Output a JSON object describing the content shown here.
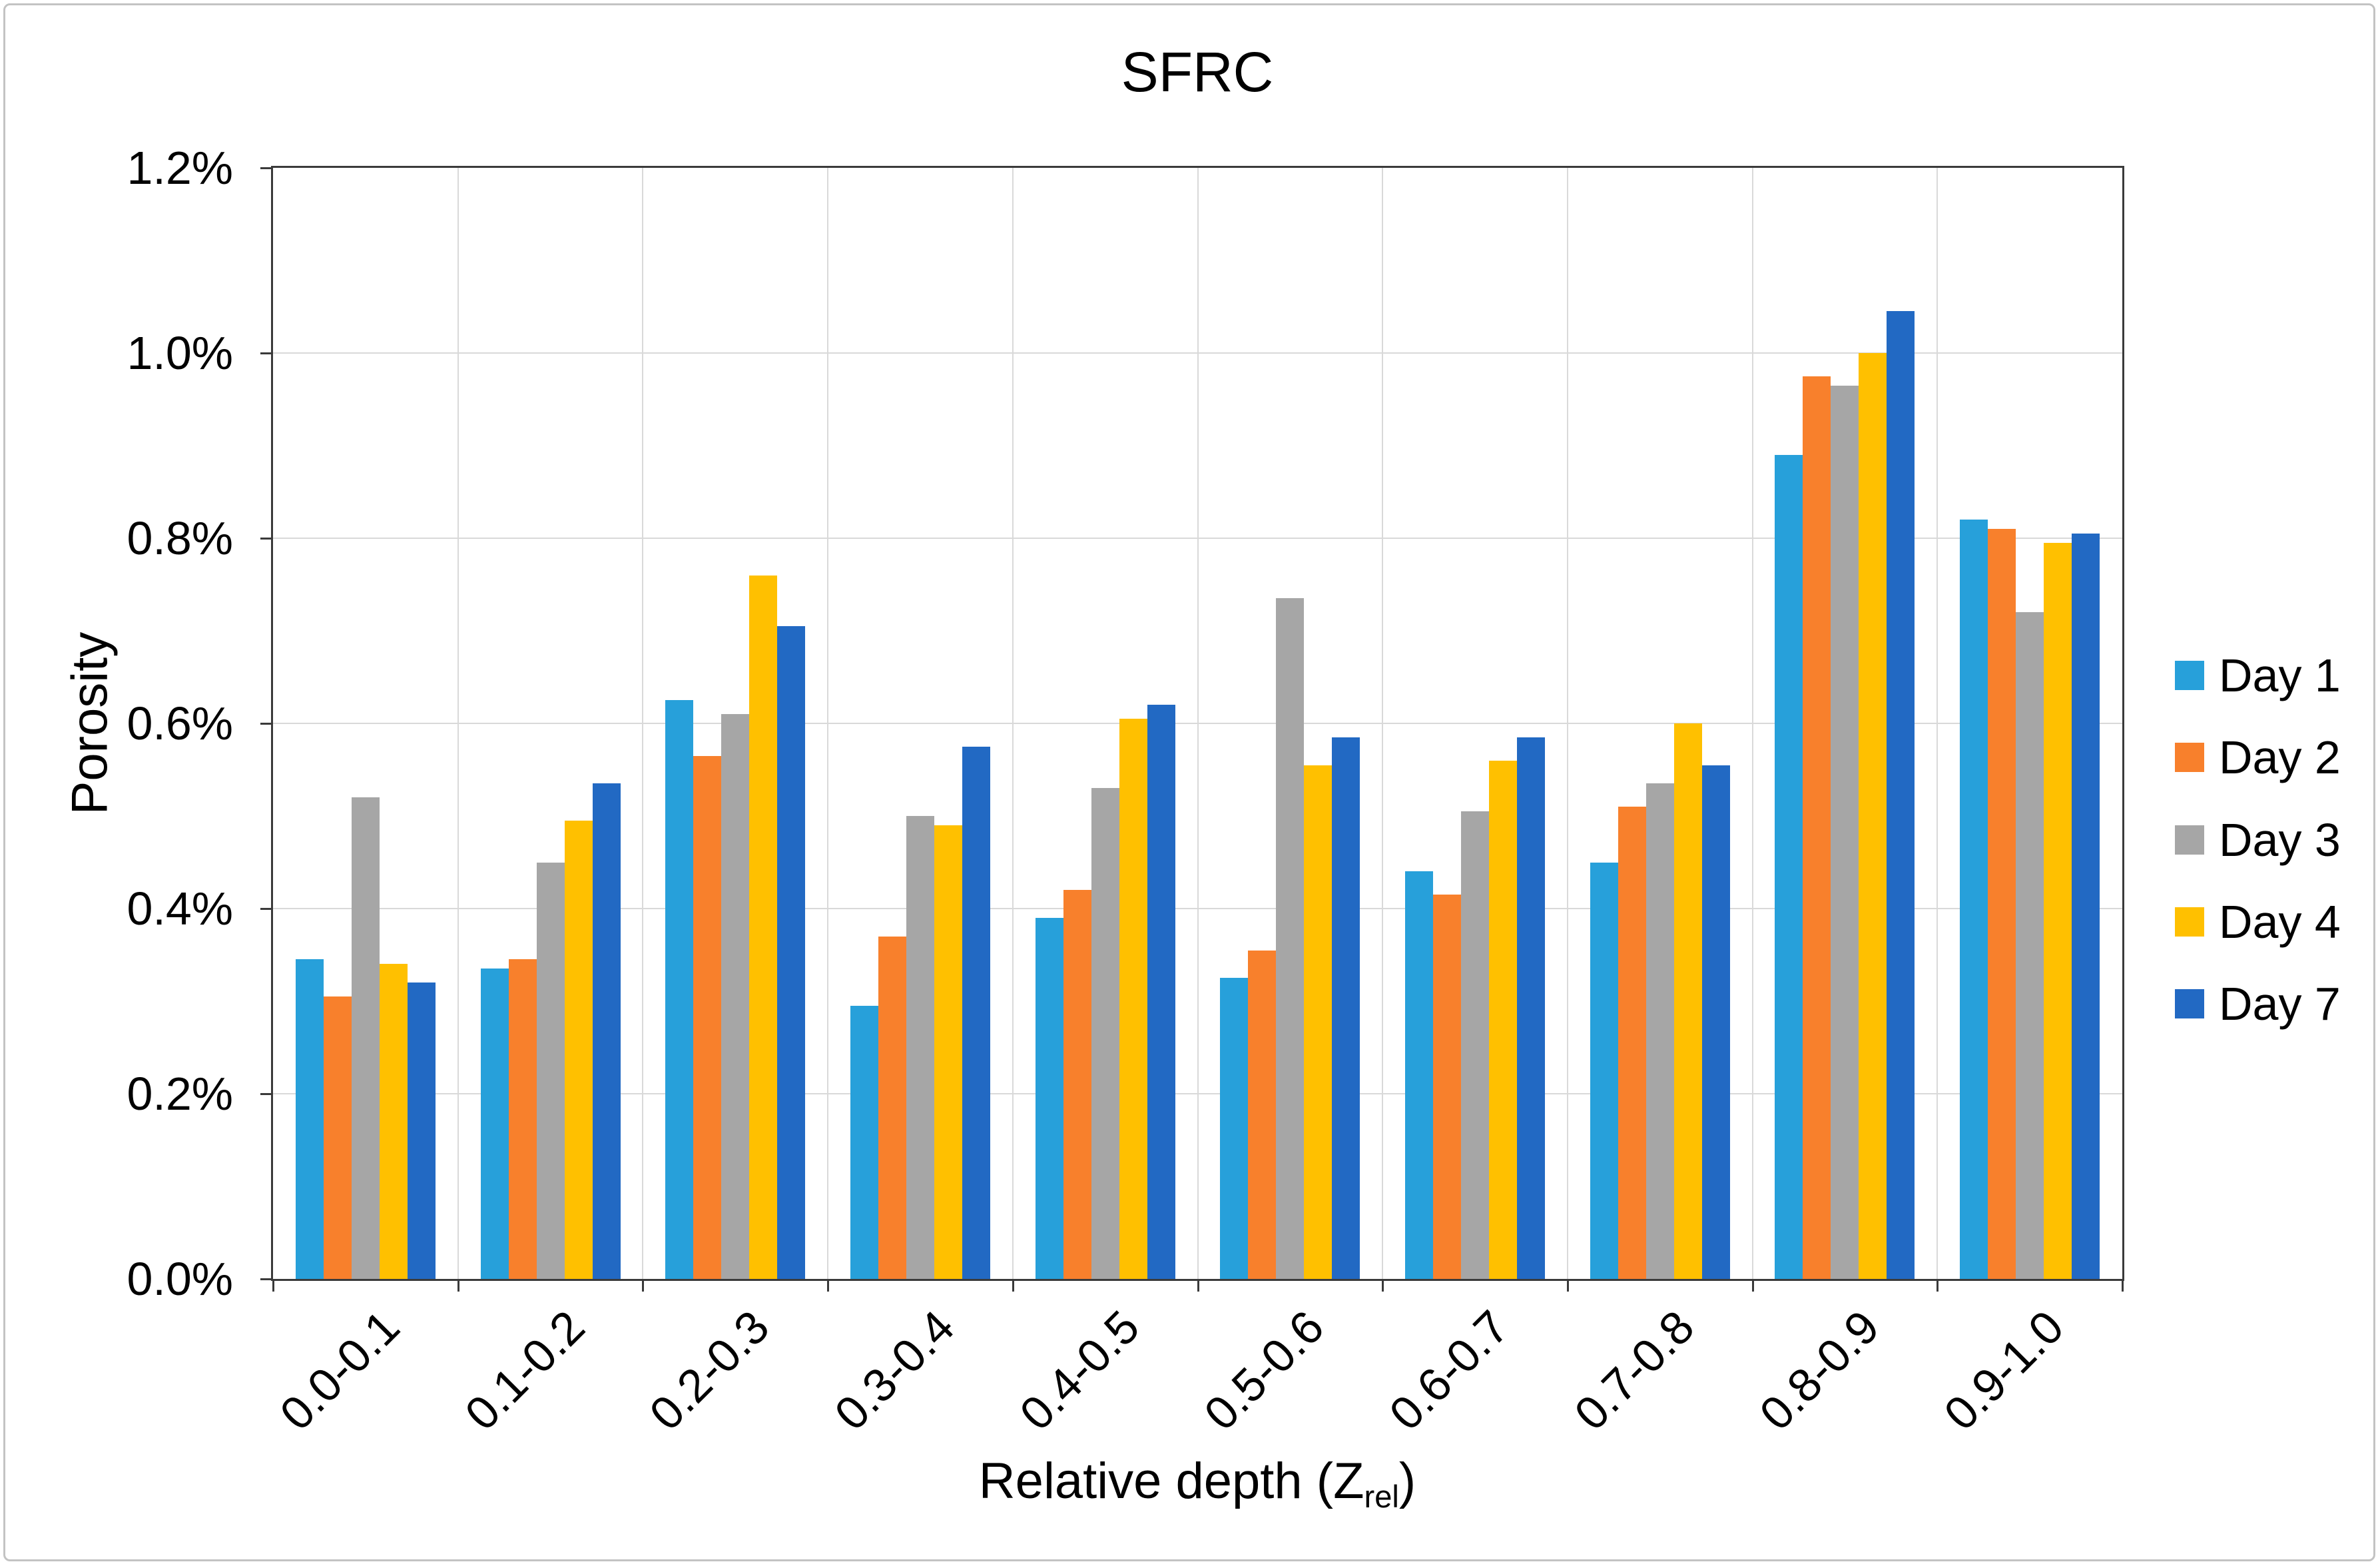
{
  "frame": {
    "background": "#ffffff",
    "border_color": "#c3c3c3"
  },
  "chart_data": {
    "type": "bar",
    "title": "SFRC",
    "ylabel": "Porosity",
    "xlabel": "Relative depth (Z_rel)",
    "xlabel_prefix": "Relative depth (Z",
    "xlabel_sub": "rel",
    "xlabel_suffix": ")",
    "ylim": [
      0,
      1.2
    ],
    "y_unit": "%",
    "y_tick_step": 0.2,
    "y_tick_labels": [
      "0.0%",
      "0.2%",
      "0.4%",
      "0.6%",
      "0.8%",
      "1.0%",
      "1.2%"
    ],
    "grid": true,
    "legend_position": "right",
    "axis_color": "#3a3a3a",
    "gridline_color": "#d9d9d9",
    "categories": [
      "0.0-0.1",
      "0.1-0.2",
      "0.2-0.3",
      "0.3-0.4",
      "0.4-0.5",
      "0.5-0.6",
      "0.6-0.7",
      "0.7-0.8",
      "0.8-0.9",
      "0.9-1.0"
    ],
    "series": [
      {
        "name": "Day 1",
        "color": "#27A0DA",
        "values": [
          0.345,
          0.335,
          0.625,
          0.295,
          0.39,
          0.325,
          0.44,
          0.45,
          0.89,
          0.82
        ]
      },
      {
        "name": "Day 2",
        "color": "#F8802C",
        "values": [
          0.305,
          0.345,
          0.565,
          0.37,
          0.42,
          0.355,
          0.415,
          0.51,
          0.975,
          0.81
        ]
      },
      {
        "name": "Day 3",
        "color": "#A6A6A6",
        "values": [
          0.52,
          0.45,
          0.61,
          0.5,
          0.53,
          0.735,
          0.505,
          0.535,
          0.965,
          0.72
        ]
      },
      {
        "name": "Day 4",
        "color": "#FFC000",
        "values": [
          0.34,
          0.495,
          0.76,
          0.49,
          0.605,
          0.555,
          0.56,
          0.6,
          1.0,
          0.795
        ]
      },
      {
        "name": "Day 7",
        "color": "#2269C3",
        "values": [
          0.32,
          0.535,
          0.705,
          0.575,
          0.62,
          0.585,
          0.585,
          0.555,
          1.045,
          0.805
        ]
      }
    ]
  }
}
